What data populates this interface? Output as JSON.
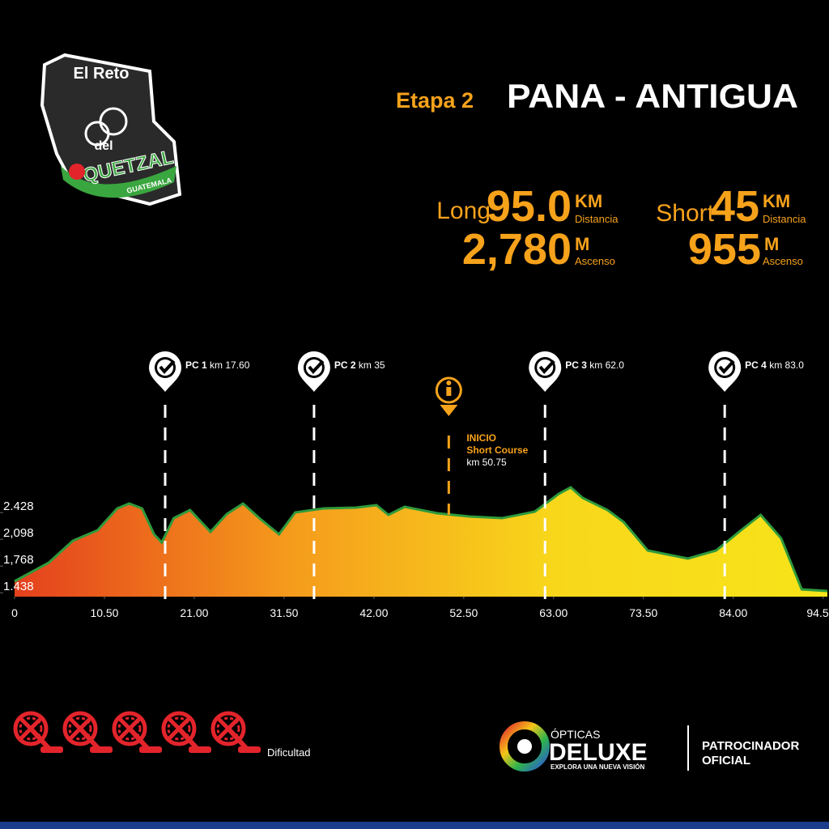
{
  "logo": {
    "top": "El Reto",
    "middle": "del",
    "name": "QUETZAL",
    "country": "GUATEMALA"
  },
  "title": {
    "stage": "Etapa 2",
    "route": "PANA - ANTIGUA"
  },
  "stats": [
    {
      "label": "Long",
      "distance": "95.0",
      "distance_unit": "KM",
      "distance_caption": "Distancia",
      "ascent": "2,780",
      "ascent_unit": "M",
      "ascent_caption": "Ascenso"
    },
    {
      "label": "Short",
      "distance": "45",
      "distance_unit": "KM",
      "distance_caption": "Distancia",
      "ascent": "955",
      "ascent_unit": "M",
      "ascent_caption": "Ascenso"
    }
  ],
  "chart_data": {
    "type": "area",
    "x": [
      0,
      4,
      6.8,
      9.7,
      12,
      13.4,
      14.9,
      16.3,
      17.2,
      18.6,
      20.5,
      22.9,
      24.8,
      26.7,
      28.6,
      30.9,
      32.8,
      36.1,
      39.9,
      42.3,
      43.7,
      45.6,
      49.4,
      53.2,
      57,
      60.8,
      63.6,
      65,
      66.4,
      69.3,
      71.2,
      74,
      78.7,
      82,
      84.9,
      87.2,
      89.6,
      92,
      95
    ],
    "values": [
      1580,
      1810,
      2080,
      2210,
      2480,
      2540,
      2480,
      2160,
      2060,
      2360,
      2460,
      2190,
      2410,
      2540,
      2360,
      2160,
      2430,
      2480,
      2490,
      2520,
      2400,
      2500,
      2420,
      2380,
      2360,
      2440,
      2660,
      2740,
      2610,
      2460,
      2310,
      1960,
      1860,
      1960,
      2210,
      2400,
      2110,
      1480,
      1460
    ],
    "color": "#2f9a3c",
    "gradient": [
      "#e4401d",
      "#f59a1c",
      "#f8d71b",
      "#f7e41a"
    ],
    "xlim": [
      0,
      95
    ],
    "ylim": [
      1390,
      2860
    ],
    "xticks": [
      0,
      {
        "value": 10.5,
        "label": "10.50"
      },
      {
        "value": 21,
        "label": "21.00"
      },
      {
        "value": 31.5,
        "label": "31.50"
      },
      {
        "value": 42,
        "label": "42.00"
      },
      {
        "value": 52.5,
        "label": "52.50"
      },
      {
        "value": 63,
        "label": "63.00"
      },
      {
        "value": 73.5,
        "label": "73.50"
      },
      {
        "value": 84,
        "label": "84.00"
      },
      94.5
    ],
    "yticks": [
      {
        "value": 2428,
        "label": "2.428"
      },
      {
        "value": 2098,
        "label": "2,098"
      },
      {
        "value": 1768,
        "label": "1,768"
      },
      {
        "value": 1438,
        "label": "1.438"
      }
    ],
    "checkpoints": [
      {
        "label": "PC 1",
        "text": "km 17.60",
        "km": 17.6
      },
      {
        "label": "PC 2",
        "text": "km 35",
        "km": 35
      },
      {
        "label": "PC 3",
        "text": "km 62.0",
        "km": 62
      },
      {
        "label": "PC 4",
        "text": "km 83.0",
        "km": 83
      }
    ],
    "start": {
      "line1": "INICIO",
      "line2": "Short Course",
      "text": "km 50.75",
      "km": 50.75,
      "color": "#f7a21b"
    }
  },
  "difficulty": {
    "label": "Dificultad"
  },
  "sponsor": {
    "brand_top": "ÓPTICAS",
    "brand": "DELUXE",
    "tagline": "EXPLORA UNA NUEVA VISIÓN",
    "role1": "PATROCINADOR",
    "role2": "OFICIAL"
  }
}
